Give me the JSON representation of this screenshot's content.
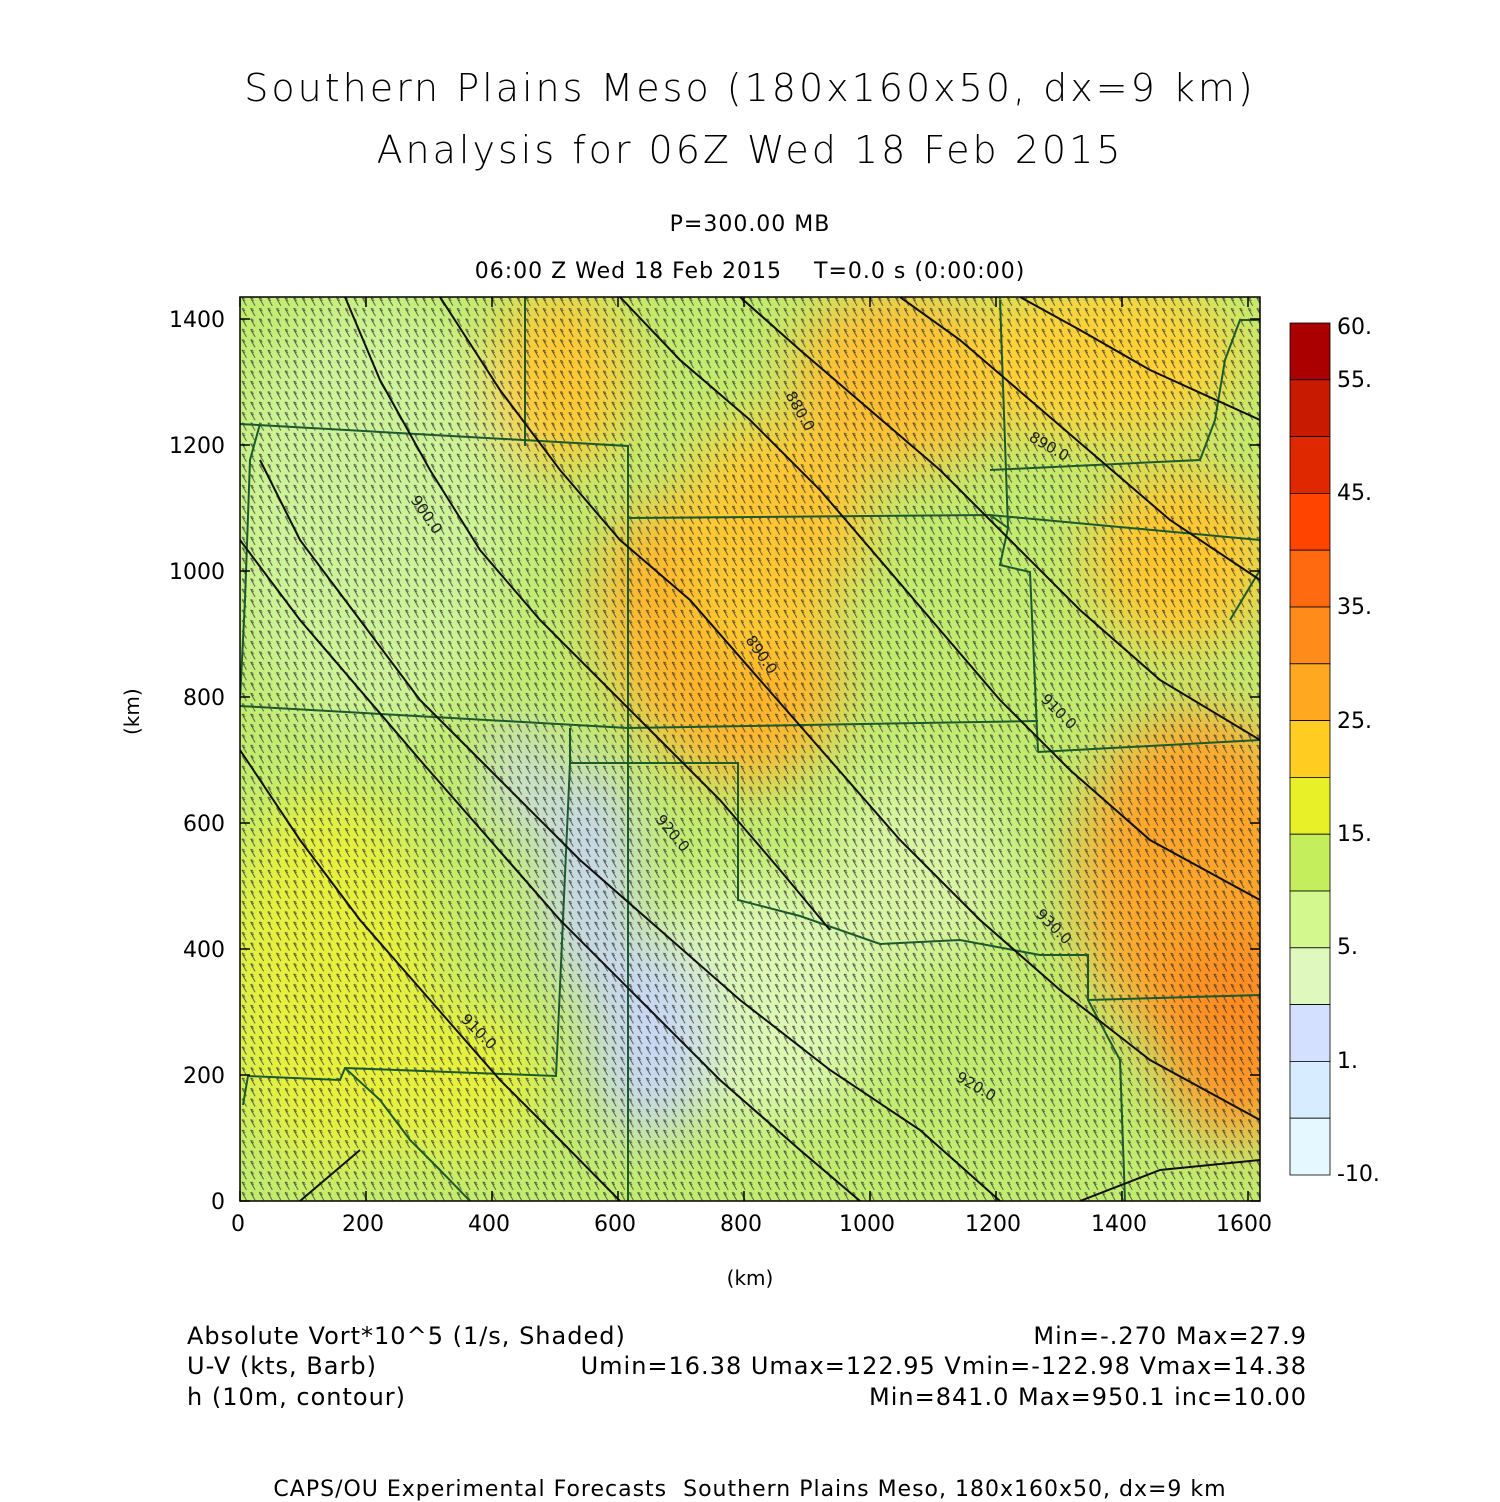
{
  "header": {
    "title_line1": "Southern Plains Meso (180x160x50, dx=9 km)",
    "title_line2": "Analysis for 06Z Wed 18 Feb 2015",
    "pressure_level": "P=300.00 MB",
    "time_line": "06:00 Z Wed 18 Feb 2015    T=0.0 s (0:00:00)"
  },
  "axes": {
    "x_unit": "(km)",
    "y_unit": "(km)",
    "x_ticks": [
      "0",
      "200",
      "400",
      "600",
      "800",
      "1000",
      "1200",
      "1400",
      "1600"
    ],
    "y_ticks": [
      "0",
      "200",
      "400",
      "600",
      "800",
      "1000",
      "1200",
      "1400"
    ]
  },
  "colorbar": {
    "labels": [
      "60.",
      "55.",
      "45.",
      "35.",
      "25.",
      "15.",
      "5.",
      "1.",
      "-10."
    ],
    "colors": [
      "#aa0000",
      "#c81a00",
      "#e02800",
      "#ff4400",
      "#ff6a10",
      "#ff8c1a",
      "#ffa820",
      "#ffcc22",
      "#e8f028",
      "#c4ee5c",
      "#d2f88e",
      "#def8be",
      "#d4e0ff",
      "#d8ecff",
      "#e6f8ff"
    ]
  },
  "contour_labels": [
    "880.0",
    "890.0",
    "900.0",
    "890.0",
    "910.0",
    "920.0",
    "930.0",
    "910.0",
    "920.0"
  ],
  "footer": {
    "field1_name": "Absolute Vort*10^5 (1/s, Shaded)",
    "field1_stats": "Min=-.270 Max=27.9",
    "field2_name": "U-V (kts, Barb)",
    "field2_stats": "Umin=16.38 Umax=122.95 Vmin=-122.98 Vmax=14.38",
    "field3_name": "h (10m, contour)",
    "field3_stats": "Min=841.0 Max=950.1 inc=10.00",
    "credit": "CAPS/OU Experimental Forecasts  Southern Plains Meso, 180x160x50, dx=9 km"
  }
}
